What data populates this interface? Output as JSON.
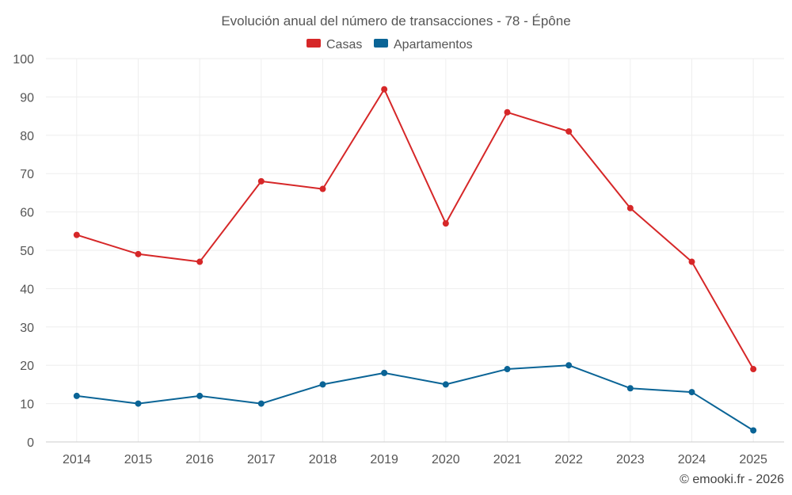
{
  "chart_data": {
    "type": "line",
    "title": "Evolución anual del número de transacciones - 78 - Épône",
    "categories": [
      "2014",
      "2015",
      "2016",
      "2017",
      "2018",
      "2019",
      "2020",
      "2021",
      "2022",
      "2023",
      "2024",
      "2025"
    ],
    "series": [
      {
        "name": "Casas",
        "color": "#d62728",
        "values": [
          54,
          49,
          47,
          68,
          66,
          92,
          57,
          86,
          81,
          61,
          47,
          19
        ]
      },
      {
        "name": "Apartamentos",
        "color": "#0a6496",
        "values": [
          12,
          10,
          12,
          10,
          15,
          18,
          15,
          19,
          20,
          14,
          13,
          3
        ]
      }
    ],
    "ylim": [
      0,
      100
    ],
    "yticks": [
      0,
      10,
      20,
      30,
      40,
      50,
      60,
      70,
      80,
      90,
      100
    ],
    "grid": true,
    "legend_position": "top-center",
    "credit": "© emooki.fr - 2026"
  }
}
